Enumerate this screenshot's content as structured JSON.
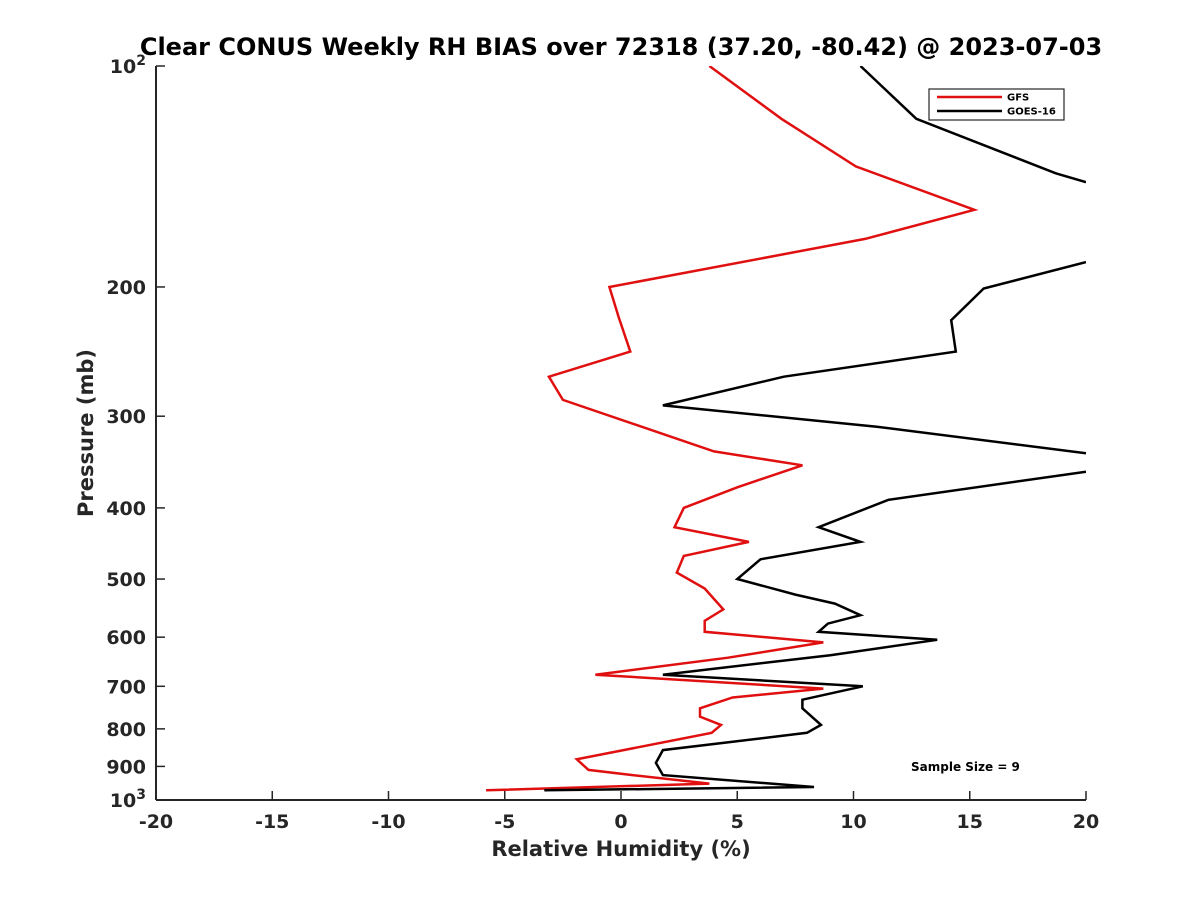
{
  "chart_data": {
    "type": "line",
    "title": "Clear CONUS Weekly RH BIAS over 72318 (37.20, -80.42) @ 2023-07-03",
    "xlabel": "Relative Humidity (%)",
    "ylabel": "Pressure (mb)",
    "xlim": [
      -20,
      20
    ],
    "ylim": [
      100,
      1000
    ],
    "y_scale": "log",
    "y_reversed": true,
    "grid": false,
    "legend_position": "top-right",
    "x_ticks": [
      "-20",
      "-15",
      "-10",
      "-5",
      "0",
      "5",
      "10",
      "15",
      "20"
    ],
    "x_tick_values": [
      -20,
      -15,
      -10,
      -5,
      0,
      5,
      10,
      15,
      20
    ],
    "y_ticks": [
      {
        "value": 100,
        "base": "10",
        "exp": "2"
      },
      {
        "value": 200,
        "label": "200"
      },
      {
        "value": 300,
        "label": "300"
      },
      {
        "value": 400,
        "label": "400"
      },
      {
        "value": 500,
        "label": "500"
      },
      {
        "value": 600,
        "label": "600"
      },
      {
        "value": 700,
        "label": "700"
      },
      {
        "value": 800,
        "label": "800"
      },
      {
        "value": 900,
        "label": "900"
      },
      {
        "value": 1000,
        "base": "10",
        "exp": "3"
      }
    ],
    "annotation": "Sample Size = 9",
    "series": [
      {
        "name": "GFS",
        "color": "#e01010",
        "points": [
          {
            "x": 3.8,
            "p": 100
          },
          {
            "x": 6.9,
            "p": 118
          },
          {
            "x": 10.1,
            "p": 137
          },
          {
            "x": 15.2,
            "p": 157
          },
          {
            "x": 10.5,
            "p": 172
          },
          {
            "x": -0.5,
            "p": 200
          },
          {
            "x": -0.1,
            "p": 220
          },
          {
            "x": 0.4,
            "p": 245
          },
          {
            "x": -3.1,
            "p": 265
          },
          {
            "x": -2.5,
            "p": 285
          },
          {
            "x": 4.0,
            "p": 335
          },
          {
            "x": 7.8,
            "p": 350
          },
          {
            "x": 5.0,
            "p": 375
          },
          {
            "x": 2.7,
            "p": 400
          },
          {
            "x": 2.3,
            "p": 425
          },
          {
            "x": 5.5,
            "p": 445
          },
          {
            "x": 2.7,
            "p": 465
          },
          {
            "x": 2.4,
            "p": 490
          },
          {
            "x": 3.6,
            "p": 515
          },
          {
            "x": 4.4,
            "p": 550
          },
          {
            "x": 3.6,
            "p": 570
          },
          {
            "x": 3.6,
            "p": 590
          },
          {
            "x": 8.7,
            "p": 610
          },
          {
            "x": 4.6,
            "p": 640
          },
          {
            "x": -1.1,
            "p": 675
          },
          {
            "x": 8.7,
            "p": 705
          },
          {
            "x": 4.8,
            "p": 725
          },
          {
            "x": 3.4,
            "p": 750
          },
          {
            "x": 3.4,
            "p": 770
          },
          {
            "x": 4.3,
            "p": 790
          },
          {
            "x": 3.9,
            "p": 810
          },
          {
            "x": -1.9,
            "p": 880
          },
          {
            "x": -1.4,
            "p": 910
          },
          {
            "x": 0.5,
            "p": 925
          },
          {
            "x": 3.8,
            "p": 950
          },
          {
            "x": -5.8,
            "p": 970
          }
        ]
      },
      {
        "name": "GOES-16",
        "color": "#000000",
        "points": [
          {
            "x": 10.3,
            "p": 100
          },
          {
            "x": 12.7,
            "p": 118
          },
          {
            "x": 18.7,
            "p": 140
          },
          {
            "x": 20.0,
            "p": 144
          },
          {
            "x": null,
            "p": null
          },
          {
            "x": 20.0,
            "p": 185
          },
          {
            "x": 15.6,
            "p": 201
          },
          {
            "x": 14.2,
            "p": 222
          },
          {
            "x": 14.4,
            "p": 245
          },
          {
            "x": 7.0,
            "p": 265
          },
          {
            "x": 1.8,
            "p": 290
          },
          {
            "x": 11.0,
            "p": 310
          },
          {
            "x": 20.0,
            "p": 337
          },
          {
            "x": null,
            "p": null
          },
          {
            "x": 20.0,
            "p": 357
          },
          {
            "x": 11.5,
            "p": 390
          },
          {
            "x": 8.5,
            "p": 425
          },
          {
            "x": 10.3,
            "p": 445
          },
          {
            "x": 6.0,
            "p": 470
          },
          {
            "x": 5.0,
            "p": 500
          },
          {
            "x": 7.5,
            "p": 525
          },
          {
            "x": 9.2,
            "p": 540
          },
          {
            "x": 10.3,
            "p": 560
          },
          {
            "x": 8.9,
            "p": 575
          },
          {
            "x": 8.5,
            "p": 590
          },
          {
            "x": 13.6,
            "p": 605
          },
          {
            "x": 9.0,
            "p": 635
          },
          {
            "x": 1.8,
            "p": 675
          },
          {
            "x": 10.4,
            "p": 700
          },
          {
            "x": 7.8,
            "p": 730
          },
          {
            "x": 7.8,
            "p": 750
          },
          {
            "x": 8.6,
            "p": 790
          },
          {
            "x": 8.0,
            "p": 810
          },
          {
            "x": 1.8,
            "p": 855
          },
          {
            "x": 1.5,
            "p": 890
          },
          {
            "x": 1.8,
            "p": 925
          },
          {
            "x": 8.3,
            "p": 960
          },
          {
            "x": -3.3,
            "p": 970
          }
        ]
      }
    ]
  }
}
